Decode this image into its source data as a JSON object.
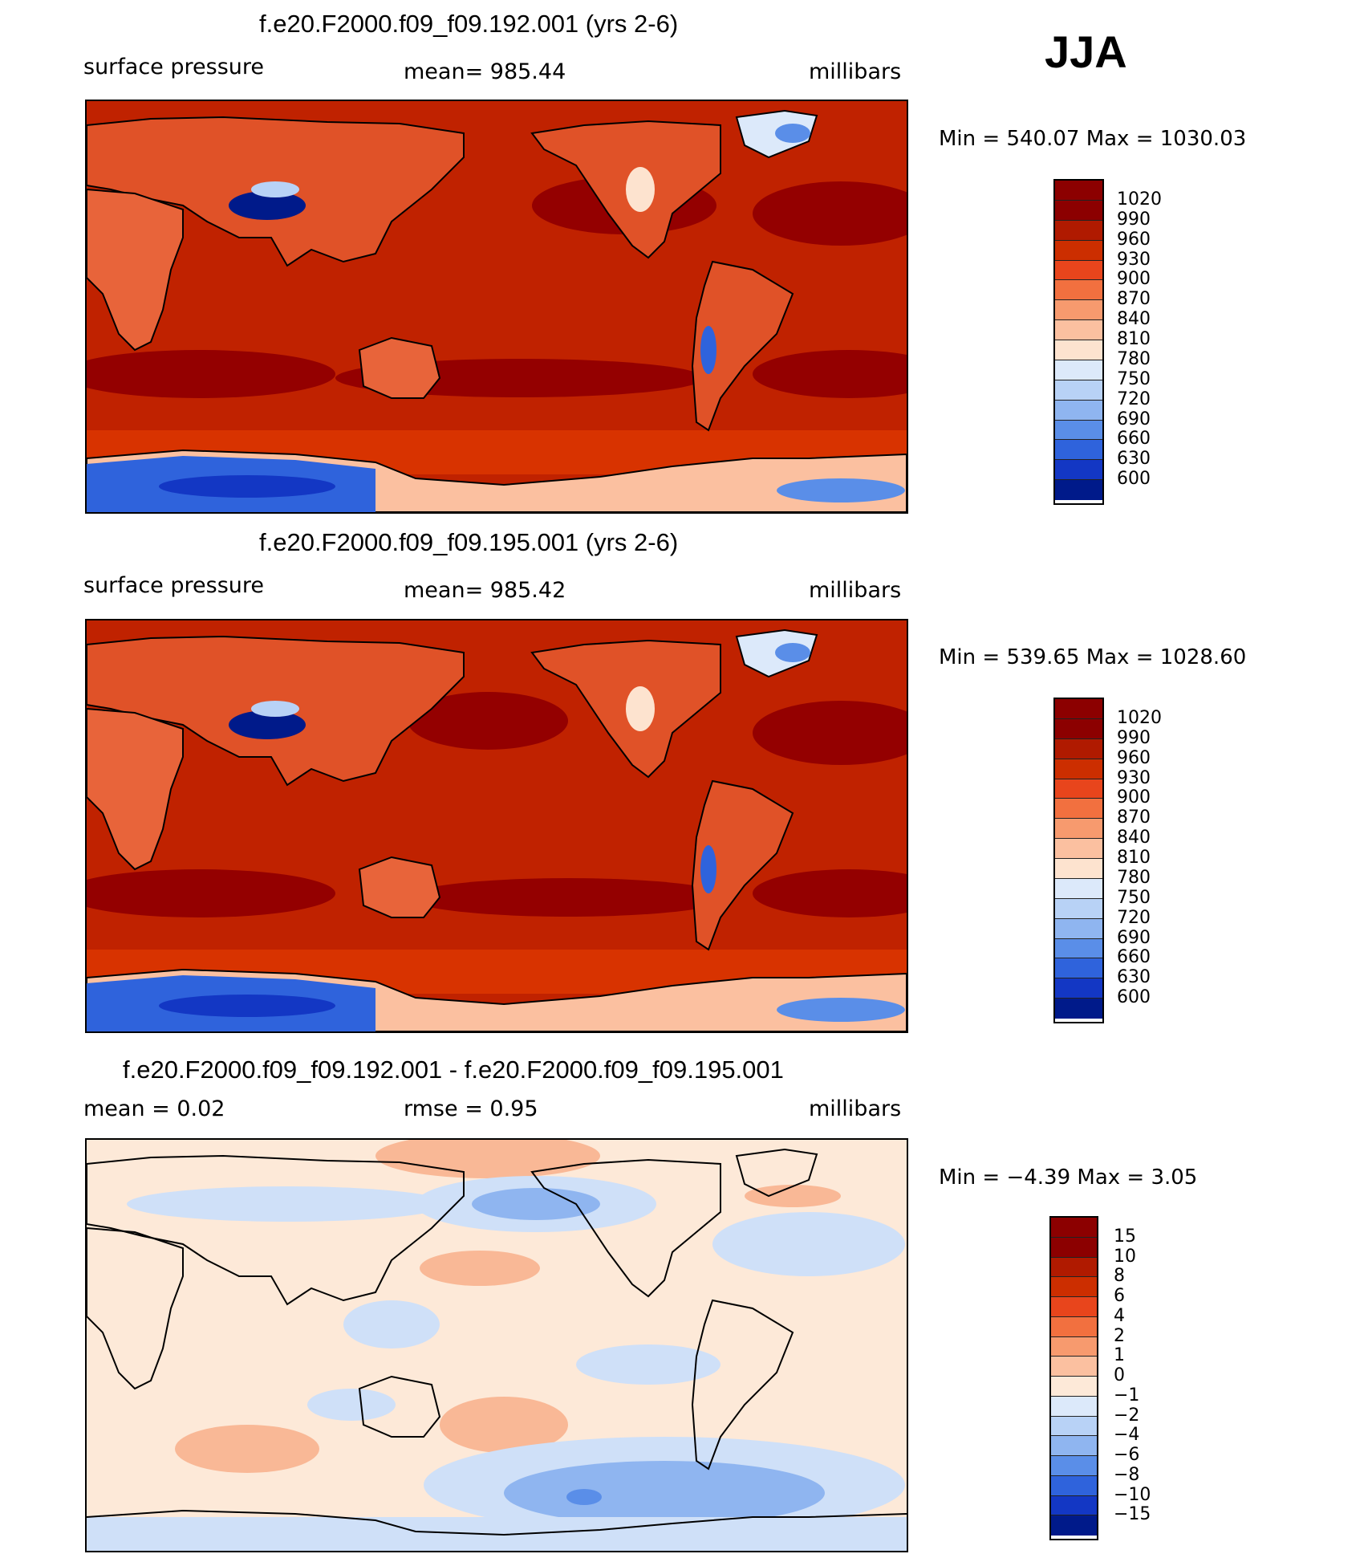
{
  "season": "JJA",
  "panels": [
    {
      "title": "f.e20.F2000.f09_f09.192.001 (yrs 2-6)",
      "left_label": "surface pressure",
      "center_label": "mean= 985.44",
      "right_label": "millibars",
      "minmax": "Min  =  540.07  Max  =  1030.03",
      "colorbar": {
        "labels": [
          "1020",
          "990",
          "960",
          "930",
          "900",
          "870",
          "840",
          "810",
          "780",
          "750",
          "720",
          "690",
          "660",
          "630",
          "600"
        ],
        "colors": [
          "#8c0000",
          "#b01a00",
          "#cc2e00",
          "#e8451c",
          "#f2703f",
          "#f79a6e",
          "#fbc0a0",
          "#fde3cf",
          "#dce9fa",
          "#b8d2f6",
          "#8fb5f0",
          "#5a8ee8",
          "#2f63dc",
          "#1337c4",
          "#001a8a"
        ]
      },
      "map": {
        "ocean": "#c02200",
        "high": "#940000",
        "land": "#e05228",
        "plateau": "#2e60d6",
        "ice": "#245ad0"
      }
    },
    {
      "title": "f.e20.F2000.f09_f09.195.001 (yrs 2-6)",
      "left_label": "surface pressure",
      "center_label": "mean= 985.42",
      "right_label": "millibars",
      "minmax": "Min  =  539.65  Max  =  1028.60",
      "colorbar": {
        "labels": [
          "1020",
          "990",
          "960",
          "930",
          "900",
          "870",
          "840",
          "810",
          "780",
          "750",
          "720",
          "690",
          "660",
          "630",
          "600"
        ],
        "colors": [
          "#8c0000",
          "#b01a00",
          "#cc2e00",
          "#e8451c",
          "#f2703f",
          "#f79a6e",
          "#fbc0a0",
          "#fde3cf",
          "#dce9fa",
          "#b8d2f6",
          "#8fb5f0",
          "#5a8ee8",
          "#2f63dc",
          "#1337c4",
          "#001a8a"
        ]
      },
      "map": {
        "ocean": "#c02200",
        "high": "#940000",
        "land": "#e05228",
        "plateau": "#2e60d6",
        "ice": "#245ad0"
      }
    },
    {
      "title": "f.e20.F2000.f09_f09.192.001 - f.e20.F2000.f09_f09.195.001",
      "left_label": "mean =     0.02",
      "center_label": "rmse =     0.95",
      "right_label": "millibars",
      "minmax": "Min  =   −4.39  Max  =     3.05",
      "colorbar": {
        "labels": [
          "15",
          "10",
          "8",
          "6",
          "4",
          "2",
          "1",
          "0",
          "−1",
          "−2",
          "−4",
          "−6",
          "−8",
          "−10",
          "−15"
        ],
        "colors": [
          "#8c0000",
          "#b01a00",
          "#cc2e00",
          "#e8451c",
          "#f2703f",
          "#f79a6e",
          "#fbc0a0",
          "#fde9d8",
          "#dce9fa",
          "#b8d2f6",
          "#8fb5f0",
          "#5a8ee8",
          "#2f63dc",
          "#1337c4",
          "#001a8a"
        ]
      },
      "map": {
        "ocean": "#fde9d8",
        "pos": "#f9b896",
        "neg": "#cfe0f8",
        "negstrong": "#8fb5f0"
      }
    }
  ]
}
